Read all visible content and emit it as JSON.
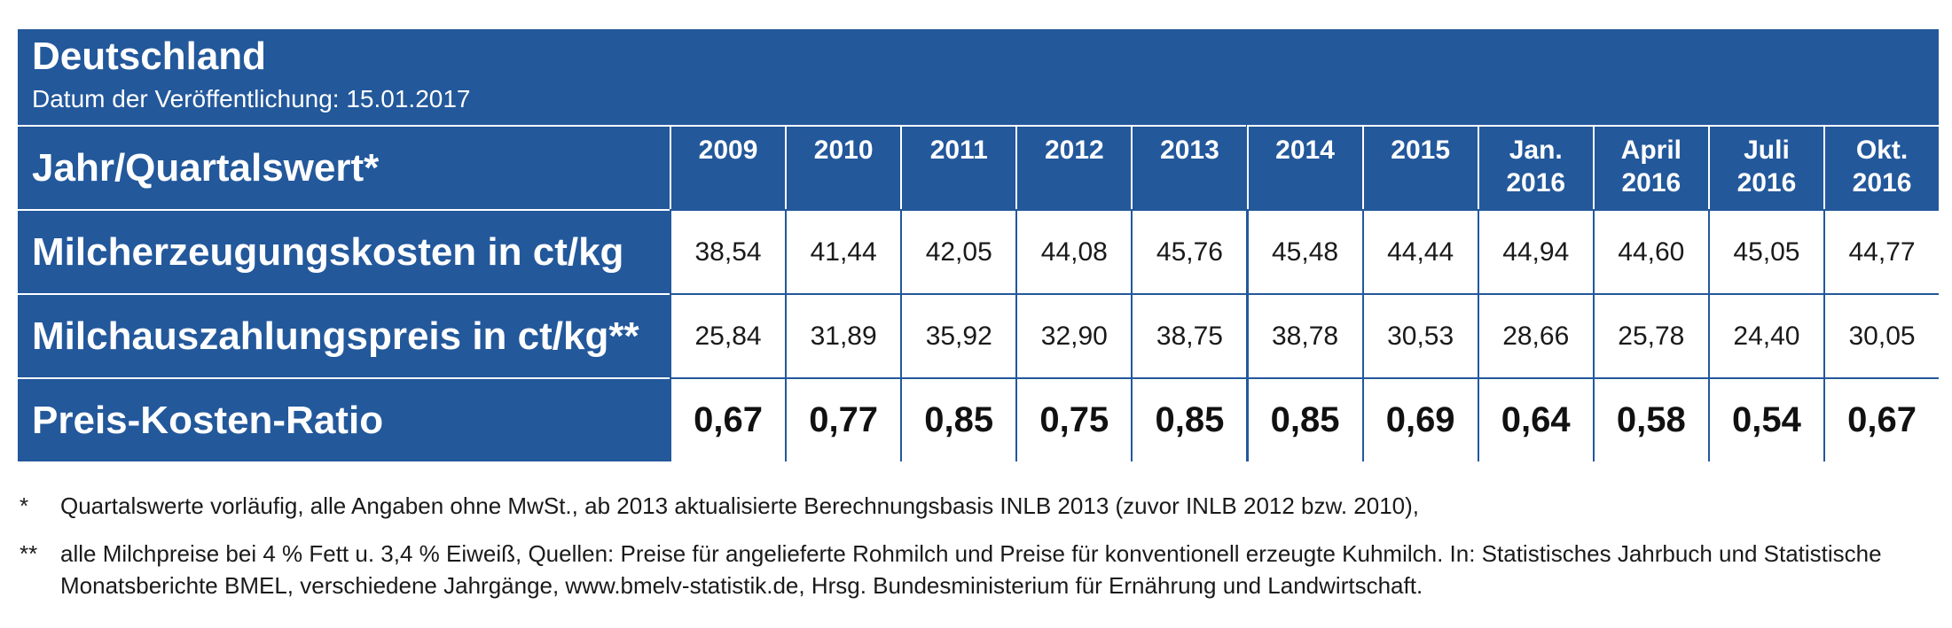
{
  "title": "Deutschland",
  "date": "Datum der Veröffentlichung: 15.01.2017",
  "colors": {
    "header_blue": "#23589b",
    "cell_bg": "#ffffff",
    "text": "#1a1a1a"
  },
  "chart_data": {
    "type": "table",
    "title": "Deutschland",
    "row_header": "Jahr/Quartalswert*",
    "columns": [
      [
        "2009"
      ],
      [
        "2010"
      ],
      [
        "2011"
      ],
      [
        "2012"
      ],
      [
        "2013"
      ],
      [
        "2014"
      ],
      [
        "2015"
      ],
      [
        "Jan.",
        "2016"
      ],
      [
        "April",
        "2016"
      ],
      [
        "Juli",
        "2016"
      ],
      [
        "Okt.",
        "2016"
      ]
    ],
    "rows": [
      {
        "label": "Milcherzeugungskosten in ct/kg",
        "values": [
          "38,54",
          "41,44",
          "42,05",
          "44,08",
          "45,76",
          "45,48",
          "44,44",
          "44,94",
          "44,60",
          "45,05",
          "44,77"
        ]
      },
      {
        "label": "Milchauszahlungspreis in ct/kg**",
        "values": [
          "25,84",
          "31,89",
          "35,92",
          "32,90",
          "38,75",
          "38,78",
          "30,53",
          "28,66",
          "25,78",
          "24,40",
          "30,05"
        ]
      },
      {
        "label": "Preis-Kosten-Ratio",
        "values": [
          "0,67",
          "0,77",
          "0,85",
          "0,75",
          "0,85",
          "0,85",
          "0,69",
          "0,64",
          "0,58",
          "0,54",
          "0,67"
        ]
      }
    ]
  },
  "footnotes": [
    {
      "mark": "*",
      "text": "Quartalswerte vorläufig, alle Angaben ohne MwSt., ab 2013 aktualisierte Berechnungsbasis INLB 2013 (zuvor INLB 2012 bzw. 2010),"
    },
    {
      "mark": "**",
      "text": "alle Milchpreise bei 4 % Fett u. 3,4 % Eiweiß, Quellen: Preise für angelieferte Rohmilch und Preise für konventionell erzeugte Kuhmilch. In: Statistisches Jahrbuch und Statistische Monatsberichte BMEL, verschiedene Jahrgänge, www.bmelv-statistik.de, Hrsg. Bundesministerium für Ernährung und Landwirtschaft."
    }
  ]
}
